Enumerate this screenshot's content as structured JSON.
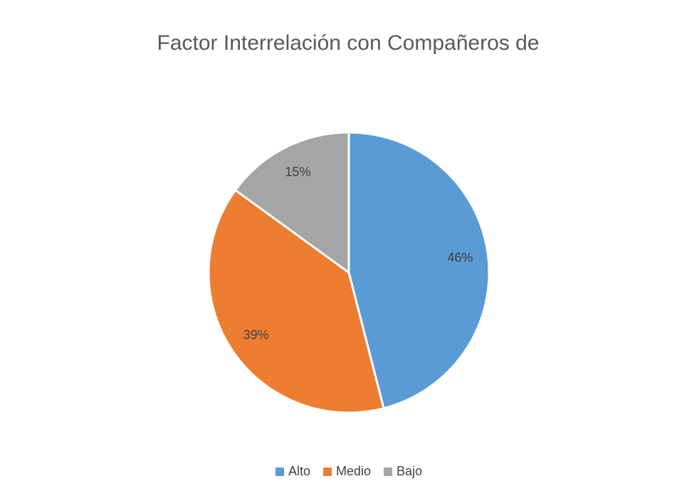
{
  "chart_data": {
    "type": "pie",
    "title": "Factor Interrelación con Compañeros de",
    "categories": [
      "Alto",
      "Medio",
      "Bajo"
    ],
    "values": [
      46,
      39,
      15
    ],
    "value_labels": [
      "46%",
      "39%",
      "15%"
    ],
    "colors": [
      "#5b9bd5",
      "#ed7d31",
      "#a5a5a5"
    ],
    "legend": "bottom"
  }
}
